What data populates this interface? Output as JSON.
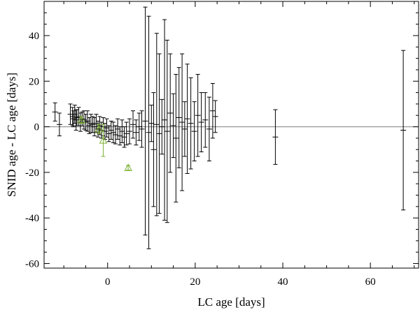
{
  "chart_data": {
    "type": "scatter",
    "title": "",
    "xlabel": "LC age [days]",
    "ylabel": "SNID age - LC age [days]",
    "xlim": [
      -14.5,
      71
    ],
    "ylim": [
      -62,
      55
    ],
    "xticks": [
      0,
      20,
      40,
      60
    ],
    "yticks": [
      -60,
      -40,
      -20,
      0,
      20,
      40
    ],
    "reference_line_y": 0,
    "grid": false,
    "legend": "none",
    "colors": {
      "main": "#000000",
      "highlight": "#7fb236",
      "zero_line": "#808080"
    },
    "series": [
      {
        "marker": "plus-with-error-bars",
        "points": [
          {
            "x": -12.0,
            "y": 6.5,
            "err": 4.0
          },
          {
            "x": -11.0,
            "y": 1.0,
            "err": 5.0
          },
          {
            "x": -8.5,
            "y": 5.5,
            "err": 4.5
          },
          {
            "x": -8.0,
            "y": 4.5,
            "err": 4.0
          },
          {
            "x": -7.8,
            "y": 3.5,
            "err": 3.5
          },
          {
            "x": -7.5,
            "y": 5.5,
            "err": 4.0
          },
          {
            "x": -7.2,
            "y": 3.0,
            "err": 4.5
          },
          {
            "x": -7.0,
            "y": 4.0,
            "err": 3.5
          },
          {
            "x": -6.6,
            "y": 4.5,
            "err": 4.0
          },
          {
            "x": -6.2,
            "y": 2.0,
            "err": 4.0
          },
          {
            "x": -5.8,
            "y": 3.5,
            "err": 3.0
          },
          {
            "x": -5.4,
            "y": 3.0,
            "err": 4.0
          },
          {
            "x": -5.0,
            "y": 2.0,
            "err": 3.5
          },
          {
            "x": -4.6,
            "y": 2.5,
            "err": 4.5
          },
          {
            "x": -4.2,
            "y": 0.5,
            "err": 3.5
          },
          {
            "x": -3.8,
            "y": 1.5,
            "err": 4.0
          },
          {
            "x": -3.4,
            "y": 1.0,
            "err": 3.5
          },
          {
            "x": -3.0,
            "y": 0.0,
            "err": 4.0
          },
          {
            "x": -2.6,
            "y": 1.5,
            "err": 4.0
          },
          {
            "x": -2.2,
            "y": -1.0,
            "err": 3.5
          },
          {
            "x": -1.8,
            "y": 0.5,
            "err": 4.0
          },
          {
            "x": -1.4,
            "y": -1.5,
            "err": 3.5
          },
          {
            "x": -1.0,
            "y": 0.0,
            "err": 4.0
          },
          {
            "x": -0.6,
            "y": -2.0,
            "err": 3.5
          },
          {
            "x": -0.2,
            "y": -0.5,
            "err": 4.0
          },
          {
            "x": 0.3,
            "y": -3.0,
            "err": 3.5
          },
          {
            "x": 0.8,
            "y": -1.5,
            "err": 4.0
          },
          {
            "x": 1.3,
            "y": -2.5,
            "err": 4.5
          },
          {
            "x": 1.8,
            "y": -3.5,
            "err": 4.0
          },
          {
            "x": 2.3,
            "y": -1.0,
            "err": 4.5
          },
          {
            "x": 2.8,
            "y": -4.0,
            "err": 4.0
          },
          {
            "x": 3.3,
            "y": -2.0,
            "err": 5.0
          },
          {
            "x": 3.8,
            "y": -4.5,
            "err": 4.5
          },
          {
            "x": 4.3,
            "y": -3.0,
            "err": 5.0
          },
          {
            "x": 5.0,
            "y": -2.0,
            "err": 5.5
          },
          {
            "x": 5.8,
            "y": 1.0,
            "err": 6.0
          },
          {
            "x": 6.5,
            "y": -2.5,
            "err": 5.5
          },
          {
            "x": 7.2,
            "y": 0.0,
            "err": 6.0
          },
          {
            "x": 7.8,
            "y": -1.0,
            "err": 8.0
          },
          {
            "x": 8.6,
            "y": 2.5,
            "err": 50.0
          },
          {
            "x": 9.4,
            "y": -2.5,
            "err": 51.0
          },
          {
            "x": 10.0,
            "y": 1.5,
            "err": 8.0
          },
          {
            "x": 10.5,
            "y": -10.0,
            "err": 25.0
          },
          {
            "x": 11.2,
            "y": 1.0,
            "err": 40.0
          },
          {
            "x": 11.8,
            "y": -3.0,
            "err": 35.0
          },
          {
            "x": 12.4,
            "y": 0.0,
            "err": 12.0
          },
          {
            "x": 13.0,
            "y": 3.0,
            "err": 44.0
          },
          {
            "x": 13.6,
            "y": -2.0,
            "err": 40.0
          },
          {
            "x": 14.3,
            "y": 6.0,
            "err": 26.0
          },
          {
            "x": 15.0,
            "y": 0.5,
            "err": 14.0
          },
          {
            "x": 15.6,
            "y": -5.0,
            "err": 28.0
          },
          {
            "x": 16.3,
            "y": 4.0,
            "err": 22.0
          },
          {
            "x": 17.0,
            "y": 2.0,
            "err": 30.0
          },
          {
            "x": 17.6,
            "y": -1.0,
            "err": 12.0
          },
          {
            "x": 18.2,
            "y": 3.5,
            "err": 24.0
          },
          {
            "x": 19.0,
            "y": 1.5,
            "err": 20.0
          },
          {
            "x": 19.8,
            "y": -2.0,
            "err": 13.0
          },
          {
            "x": 20.6,
            "y": 5.0,
            "err": 18.0
          },
          {
            "x": 21.4,
            "y": 2.0,
            "err": 13.0
          },
          {
            "x": 22.3,
            "y": 3.0,
            "err": 12.0
          },
          {
            "x": 23.2,
            "y": -1.0,
            "err": 14.0
          },
          {
            "x": 24.0,
            "y": 7.0,
            "err": 12.0
          },
          {
            "x": 24.6,
            "y": 4.5,
            "err": 7.0
          },
          {
            "x": 38.3,
            "y": -4.5,
            "err": 12.0
          },
          {
            "x": 67.5,
            "y": -1.5,
            "err": 35.0
          }
        ]
      },
      {
        "marker": "triangle-with-error-bars",
        "points": [
          {
            "x": -6.0,
            "y": 3.0,
            "err": 1.5
          },
          {
            "x": -2.0,
            "y": -1.0,
            "err": 2.0
          },
          {
            "x": -1.0,
            "y": -6.0,
            "err": 7.0
          },
          {
            "x": 4.7,
            "y": -18.0,
            "err": 1.0
          }
        ]
      }
    ]
  }
}
